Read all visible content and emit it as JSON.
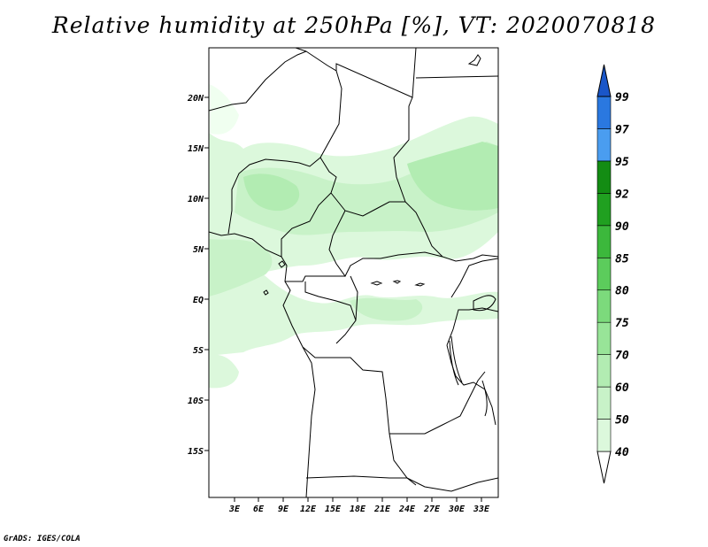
{
  "title": "Relative humidity at 250hPa [%], VT: 2020070818",
  "credit": "GrADS: IGES/COLA",
  "map": {
    "lat_labels": [
      "20N",
      "15N",
      "10N",
      "5N",
      "EQ",
      "5S",
      "10S",
      "15S"
    ],
    "lon_labels": [
      "3E",
      "6E",
      "9E",
      "12E",
      "15E",
      "18E",
      "21E",
      "24E",
      "27E",
      "30E",
      "33E"
    ]
  },
  "colorbar": {
    "levels": [
      "40",
      "50",
      "60",
      "70",
      "75",
      "80",
      "85",
      "90",
      "92",
      "95",
      "97",
      "99"
    ],
    "colors": [
      "#f0fff0",
      "#dcf8dc",
      "#c8f2c8",
      "#b2ecb2",
      "#98e498",
      "#7cda7c",
      "#5ccc5c",
      "#3cb83c",
      "#20a020",
      "#138c13",
      "#4a9df0",
      "#2a78e0",
      "#1a56c8"
    ]
  },
  "chart_data": {
    "type": "heatmap",
    "title": "Relative humidity at 250hPa [%], VT: 2020070818",
    "x_ticks": [
      "3E",
      "6E",
      "9E",
      "12E",
      "15E",
      "18E",
      "21E",
      "24E",
      "27E",
      "30E",
      "33E"
    ],
    "y_ticks": [
      "20N",
      "15N",
      "10N",
      "5N",
      "EQ",
      "5S",
      "10S",
      "15S"
    ],
    "color_levels": [
      40,
      50,
      60,
      70,
      75,
      80,
      85,
      90,
      92,
      95,
      97,
      99
    ]
  }
}
